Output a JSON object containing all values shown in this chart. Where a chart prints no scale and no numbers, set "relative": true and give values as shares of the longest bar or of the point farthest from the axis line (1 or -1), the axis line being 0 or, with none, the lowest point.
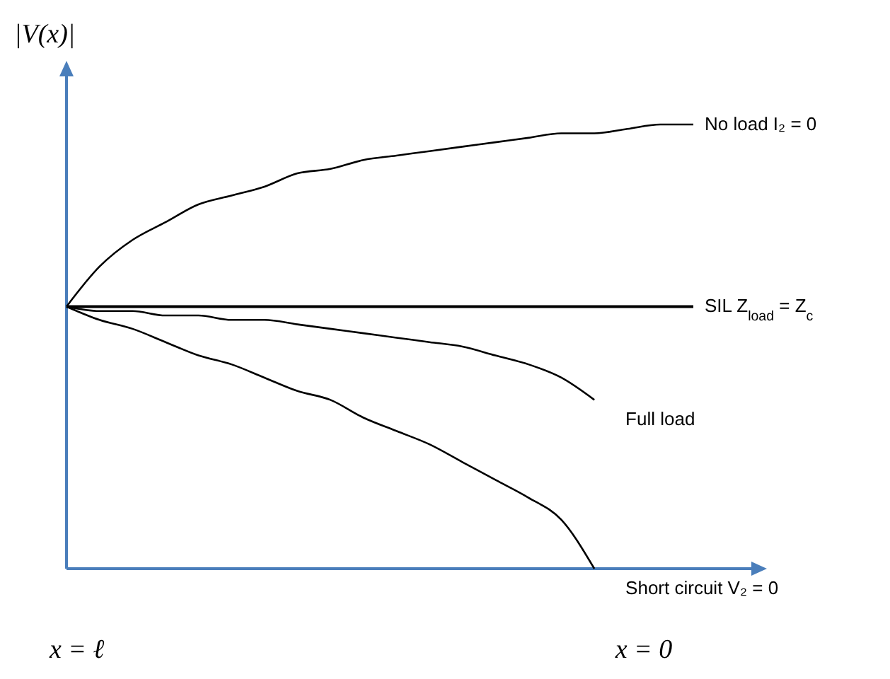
{
  "chart_data": {
    "type": "line",
    "relative": true,
    "ylabel": "|V(x)|",
    "annotations": [
      "x = ℓ",
      "x = 0"
    ],
    "categories": [
      null,
      null,
      null,
      null,
      null,
      null,
      null,
      null,
      null,
      null,
      null,
      null,
      null,
      null,
      null,
      null,
      null,
      null,
      null,
      null
    ],
    "series": [
      {
        "name": "No load I₂ = 0",
        "color": "#000000",
        "values": [
          0.59,
          0.68,
          0.74,
          0.78,
          0.82,
          0.84,
          0.86,
          0.89,
          0.9,
          0.92,
          0.93,
          0.94,
          0.95,
          0.96,
          0.97,
          0.98,
          0.98,
          0.99,
          1.0,
          1.0
        ]
      },
      {
        "name": "SIL Z$_{load}$ = Z$_{c}$",
        "color": "#000000",
        "values": [
          0.59,
          0.59,
          0.59,
          0.59,
          0.59,
          0.59,
          0.59,
          0.59,
          0.59,
          0.59,
          0.59,
          0.59,
          0.59,
          0.59,
          0.59,
          0.59,
          0.59,
          0.59,
          0.59,
          0.59
        ]
      },
      {
        "name": "Full load",
        "color": "#000000",
        "values": [
          0.59,
          0.58,
          0.58,
          0.57,
          0.57,
          0.56,
          0.56,
          0.55,
          0.54,
          0.53,
          0.52,
          0.51,
          0.5,
          0.48,
          0.46,
          0.43,
          0.38,
          null,
          null,
          null
        ]
      },
      {
        "name": "Short circuit V₂ = 0",
        "color": "#000000",
        "values": [
          0.59,
          0.56,
          0.54,
          0.51,
          0.48,
          0.46,
          0.43,
          0.4,
          0.38,
          0.34,
          0.31,
          0.28,
          0.24,
          0.2,
          0.16,
          0.11,
          0,
          null,
          null,
          null
        ]
      }
    ]
  }
}
